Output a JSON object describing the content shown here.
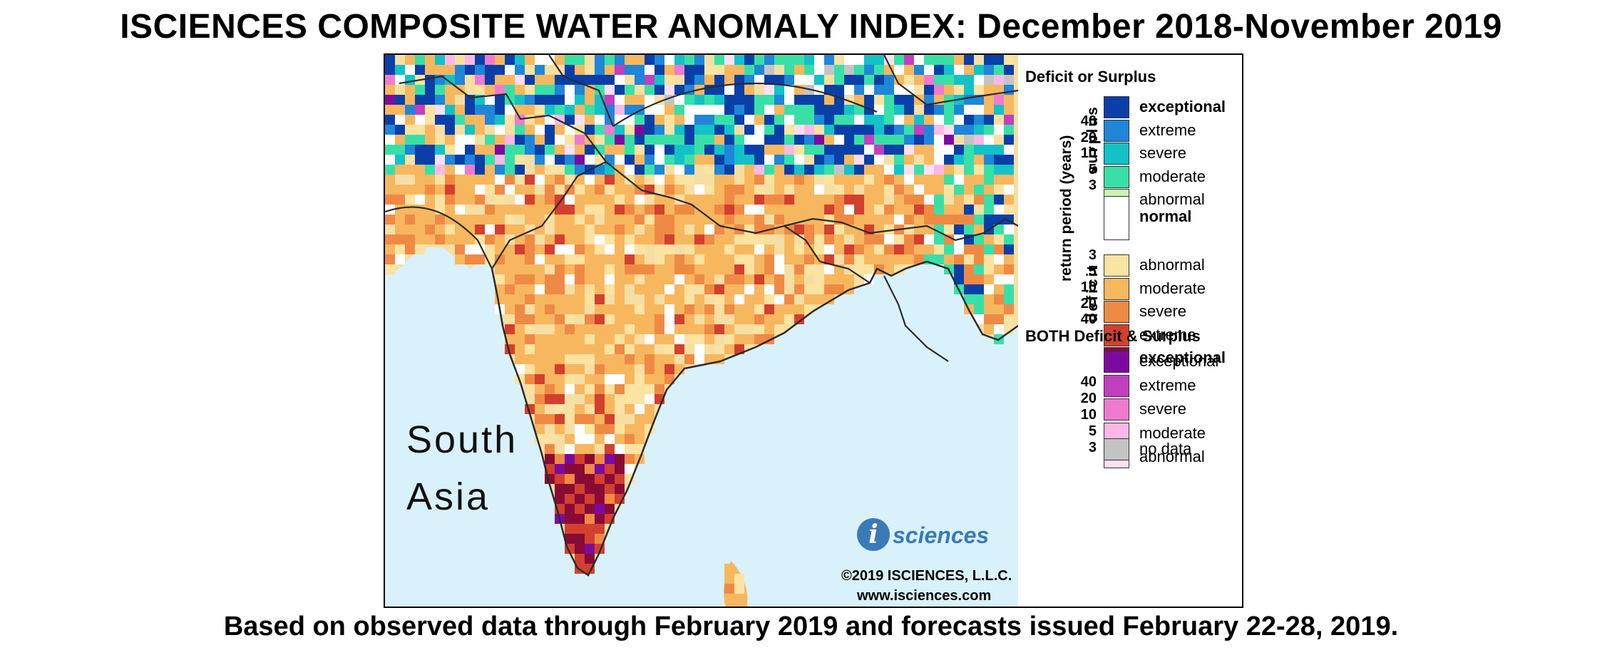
{
  "title": "ISCIENCES COMPOSITE WATER ANOMALY INDEX: December 2018-November 2019",
  "footer": "Based on observed data through February 2019 and forecasts issued February 22-28, 2019.",
  "map": {
    "region_line1": "South",
    "region_line2": "Asia",
    "logo_letter": "i",
    "logo_text": "sciences",
    "copyright": "©2019 ISCIENCES, L.L.C.",
    "website": "www.isciences.com",
    "colors": {
      "ocean": "#d9f1fb",
      "land_outside": "#f6dfa4",
      "border": "#2b2b2b"
    }
  },
  "legend": {
    "heading1": "Deficit or Surplus",
    "axis_title": "return period (years)",
    "surplus_label": "surplus",
    "deficit_label": "deficit",
    "surplus_items": [
      {
        "label": "exceptional",
        "color": "#0a3fa8",
        "bold": true
      },
      {
        "label": "extreme",
        "color": "#1f86d8",
        "bold": false
      },
      {
        "label": "severe",
        "color": "#12c2c8",
        "bold": false
      },
      {
        "label": "moderate",
        "color": "#38e0a8",
        "bold": false
      },
      {
        "label": "abnormal",
        "color": "#c9f7b2",
        "bold": false
      }
    ],
    "normal": {
      "label": "normal",
      "color": "#ffffff"
    },
    "deficit_items": [
      {
        "label": "abnormal",
        "color": "#fbe3a1",
        "bold": false
      },
      {
        "label": "moderate",
        "color": "#f7b75f",
        "bold": false
      },
      {
        "label": "severe",
        "color": "#ef8a45",
        "bold": false
      },
      {
        "label": "extreme",
        "color": "#d2402f",
        "bold": false
      },
      {
        "label": "exceptional",
        "color": "#8a0a36",
        "bold": true
      }
    ],
    "surplus_ticks": [
      "40",
      "20",
      "10",
      "5",
      "3"
    ],
    "deficit_ticks": [
      "3",
      "5",
      "10",
      "20",
      "40"
    ],
    "heading2": "BOTH Deficit & Surplus",
    "both_items": [
      {
        "label": "exceptional",
        "color": "#7d0aa0"
      },
      {
        "label": "extreme",
        "color": "#c23fc0"
      },
      {
        "label": "severe",
        "color": "#f07ad0"
      },
      {
        "label": "moderate",
        "color": "#fbb8e6"
      },
      {
        "label": "abnormal",
        "color": "#fde0f0"
      }
    ],
    "both_ticks": [
      "40",
      "20",
      "10",
      "5",
      "3"
    ],
    "nodata": {
      "label": "no data",
      "color": "#c4c4c4"
    }
  }
}
